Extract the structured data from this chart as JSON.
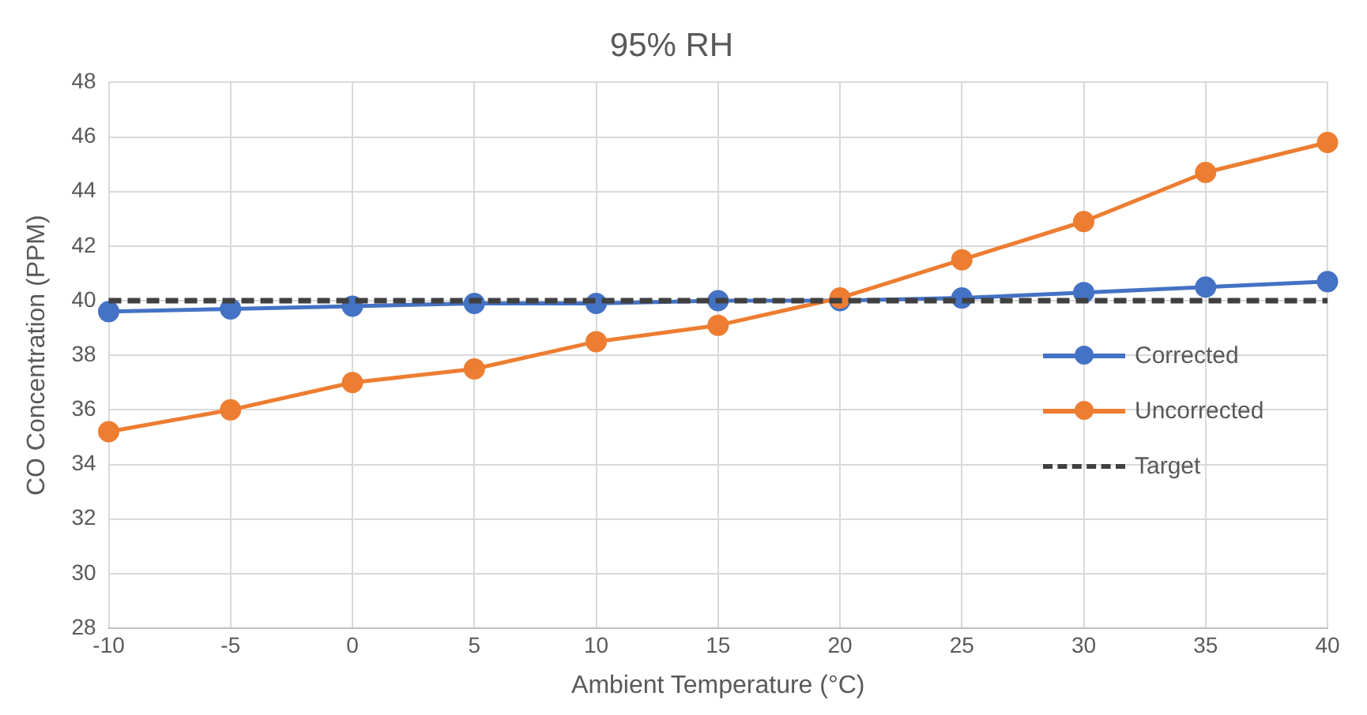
{
  "chart_data": {
    "type": "line",
    "title": "95% RH",
    "xlabel": "Ambient Temperature (°C)",
    "ylabel": "CO Concentration (PPM)",
    "x": [
      -10,
      -5,
      0,
      5,
      10,
      15,
      20,
      25,
      30,
      35,
      40
    ],
    "xlim": [
      -10,
      40
    ],
    "xticks": [
      -10,
      -5,
      0,
      5,
      10,
      15,
      20,
      25,
      30,
      35,
      40
    ],
    "ylim": [
      28,
      48
    ],
    "yticks": [
      28,
      30,
      32,
      34,
      36,
      38,
      40,
      42,
      44,
      46,
      48
    ],
    "grid": true,
    "legend": "right",
    "marker": "circle",
    "series": [
      {
        "name": "Corrected",
        "color": "#4472c4",
        "values": [
          39.6,
          39.7,
          39.8,
          39.9,
          39.9,
          40.0,
          40.0,
          40.1,
          40.3,
          40.5,
          40.7
        ]
      },
      {
        "name": "Uncorrected",
        "color": "#ed7d31",
        "values": [
          35.2,
          36.0,
          37.0,
          37.5,
          38.5,
          39.1,
          40.1,
          41.5,
          42.9,
          44.7,
          45.8
        ]
      },
      {
        "name": "Target",
        "color": "#404040",
        "marker": "none",
        "line_style": "dashed",
        "values": [
          40,
          40,
          40,
          40,
          40,
          40,
          40,
          40,
          40,
          40,
          40
        ]
      }
    ]
  }
}
